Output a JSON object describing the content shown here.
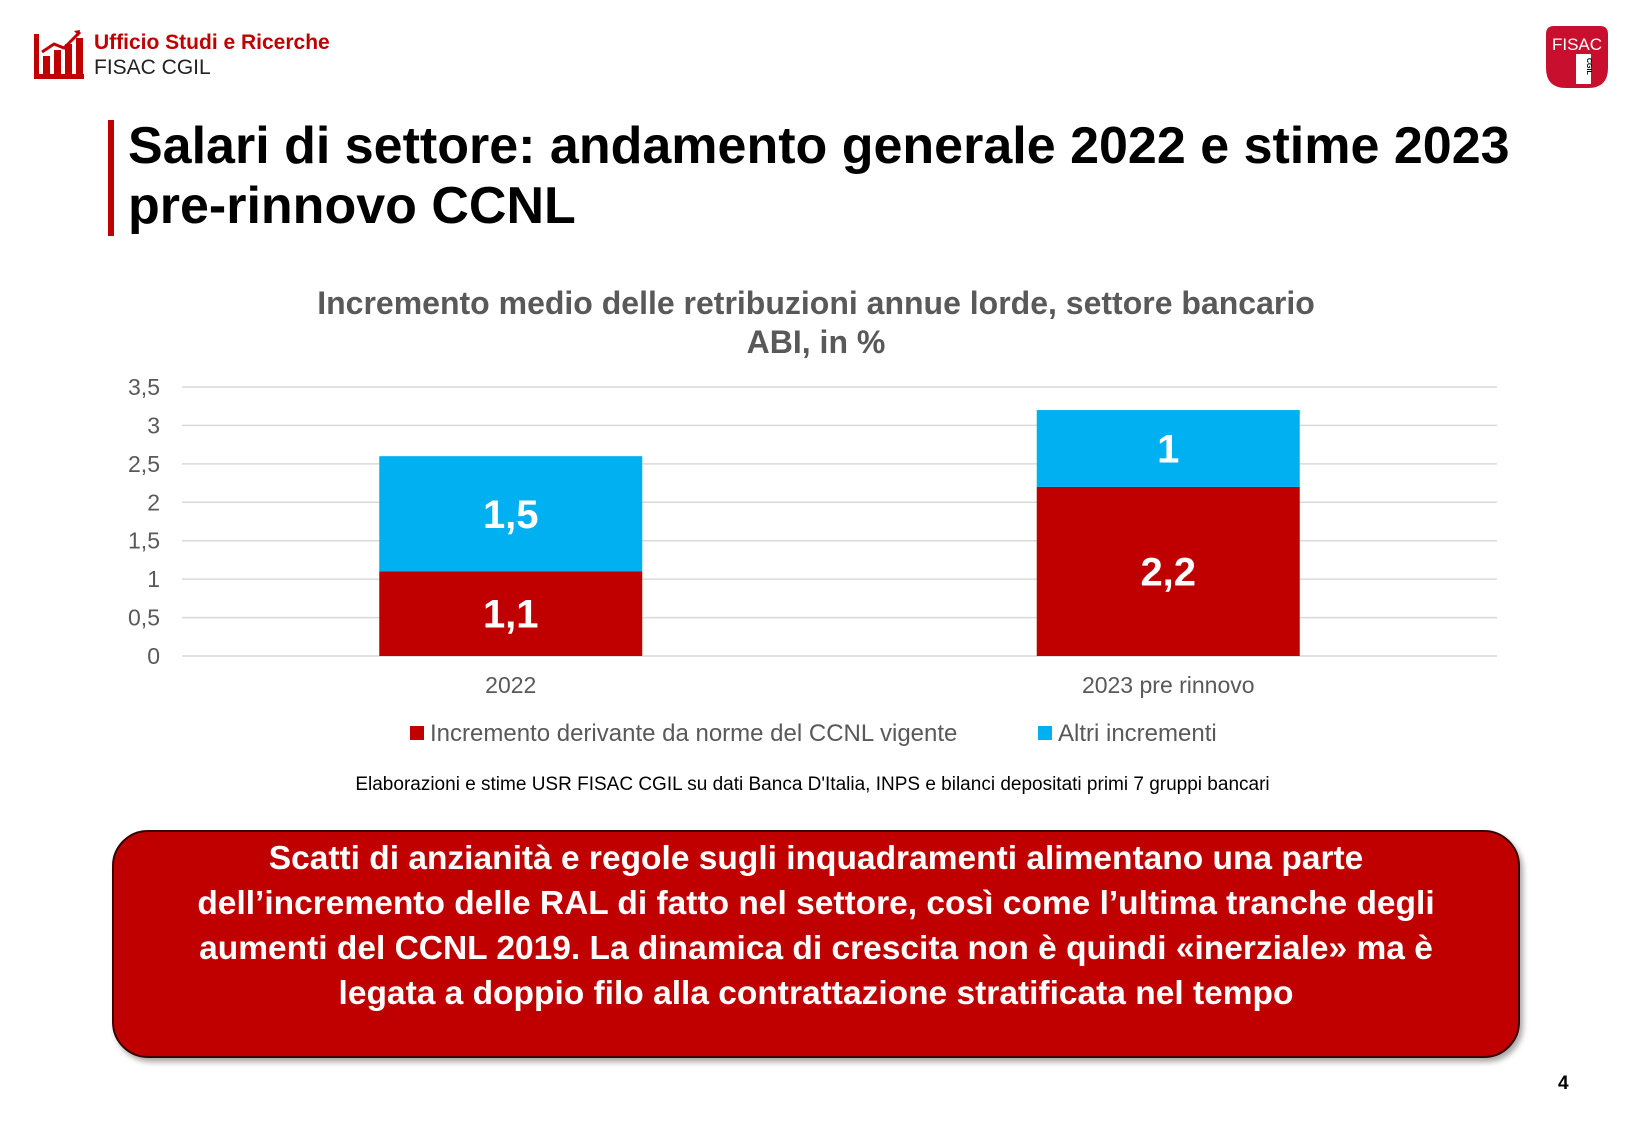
{
  "header": {
    "org_name": "Ufficio Studi e Ricerche",
    "org_sub": "FISAC CGIL",
    "badge_text": "FISAC",
    "badge_sub": "CGIL",
    "logo_icon": "bar-chart-icon",
    "brand_color": "#c00000"
  },
  "title": "Salari di settore: andamento generale 2022 e stime 2023 pre-rinnovo CCNL",
  "chart_data": {
    "type": "bar",
    "stacked": true,
    "title_lines": [
      "Incremento medio delle retribuzioni annue lorde, settore bancario",
      "ABI, in %"
    ],
    "categories": [
      "2022",
      "2023 pre rinnovo"
    ],
    "series": [
      {
        "name": "Incremento derivante da norme del CCNL vigente",
        "values": [
          1.1,
          2.2
        ],
        "labels": [
          "1,1",
          "2,2"
        ],
        "color": "#c00000"
      },
      {
        "name": "Altri incrementi",
        "values": [
          1.5,
          1.0
        ],
        "labels": [
          "1,5",
          "1"
        ],
        "color": "#00b0f0"
      }
    ],
    "ylim": [
      0,
      3.5
    ],
    "yticks": [
      0,
      0.5,
      1,
      1.5,
      2,
      2.5,
      3,
      3.5
    ],
    "ytick_labels": [
      "0",
      "0,5",
      "1",
      "1,5",
      "2",
      "2,5",
      "3",
      "3,5"
    ],
    "grid": true,
    "legend_position": "bottom"
  },
  "source_note": "Elaborazioni e stime USR FISAC CGIL su dati Banca D'Italia, INPS e bilanci  depositati primi 7 gruppi bancari",
  "callout_text": "Scatti di anzianità e regole sugli inquadramenti alimentano una parte dell’incremento delle RAL di fatto nel settore, così come l’ultima tranche degli aumenti del CCNL 2019. La dinamica di crescita non è quindi «inerziale» ma è legata a doppio filo alla contrattazione stratificata nel tempo",
  "page_number": "4"
}
